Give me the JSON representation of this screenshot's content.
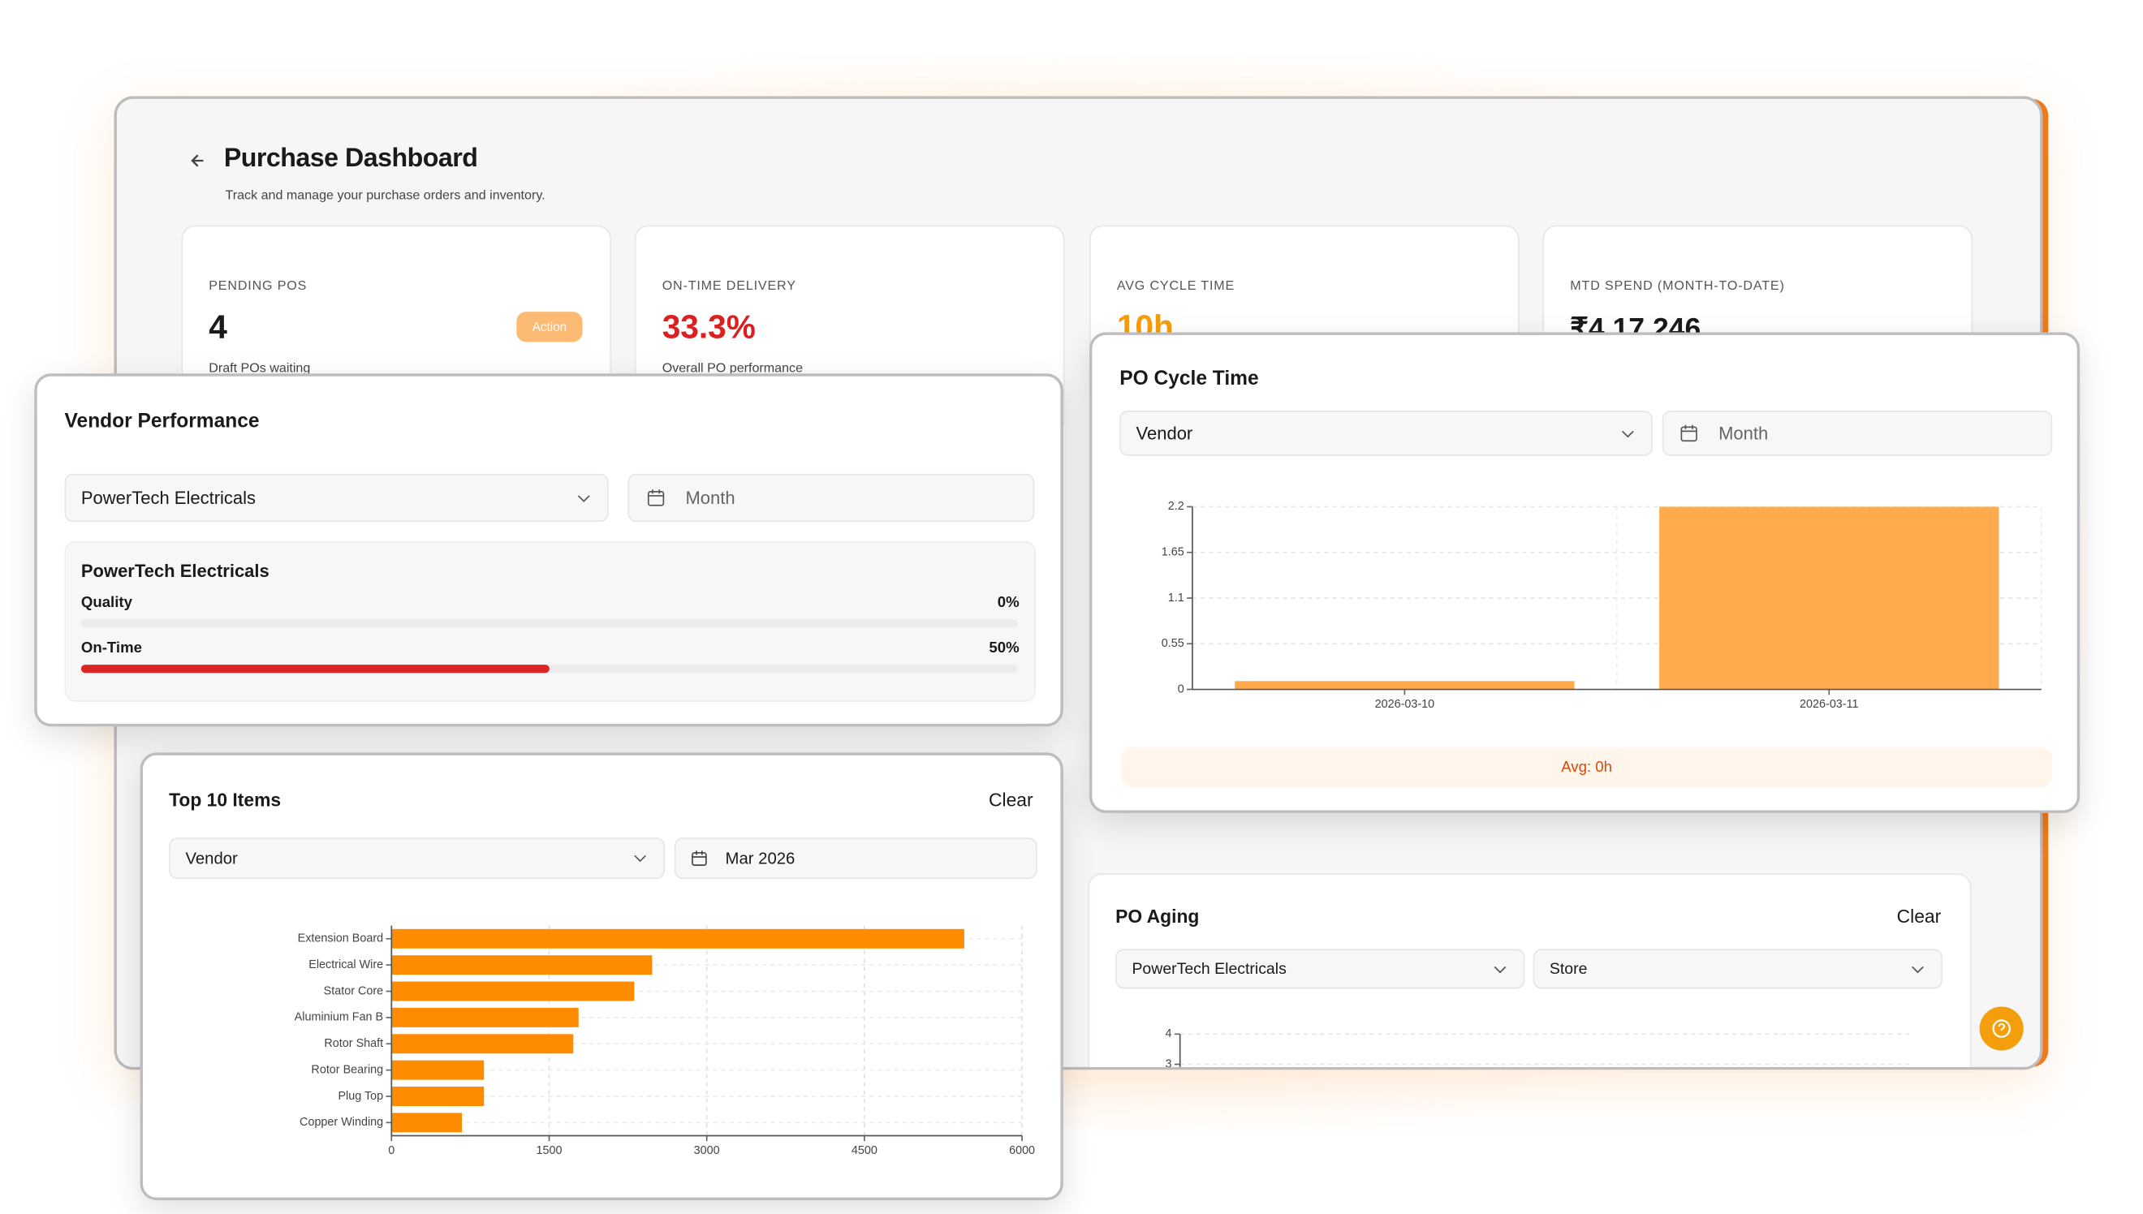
{
  "header": {
    "title": "Purchase Dashboard",
    "subtitle": "Track and manage your purchase orders and inventory."
  },
  "kpis": [
    {
      "label": "PENDING POS",
      "value": "4",
      "badge": "Action",
      "note": "Draft POs waiting"
    },
    {
      "label": "ON-TIME DELIVERY",
      "value": "33.3%",
      "note": "Overall PO performance"
    },
    {
      "label": "AVG CYCLE TIME",
      "value": "10h"
    },
    {
      "label": "MTD SPEND (MONTH-TO-DATE)",
      "value": "₹4,17,246"
    }
  ],
  "vendor_performance": {
    "title": "Vendor Performance",
    "vendor_filter": "PowerTech Electricals",
    "month_placeholder": "Month",
    "vendor": "PowerTech Electricals",
    "metrics": [
      {
        "label": "Quality",
        "value": 0,
        "value_label": "0%"
      },
      {
        "label": "On-Time",
        "value": 50,
        "value_label": "50%"
      }
    ]
  },
  "top_items": {
    "clear": "Clear",
    "vendor_filter": "Vendor",
    "month": "Mar 2026"
  },
  "po_cycle_time": {
    "vendor_filter": "Vendor",
    "month_placeholder": "Month",
    "avg": "Avg: 0h"
  },
  "po_aging": {
    "clear": "Clear",
    "vendor_filter": "PowerTech Electricals",
    "store_filter": "Store"
  },
  "chart_data": [
    {
      "type": "bar",
      "orientation": "horizontal",
      "title": "Top 10 Items",
      "categories": [
        "Extension Board",
        "Electrical Wire",
        "Stator Core",
        "Aluminium Fan B",
        "Rotor Shaft",
        "Rotor Bearing",
        "Plug Top",
        "Copper Winding"
      ],
      "values": [
        5450,
        2480,
        2310,
        1780,
        1730,
        880,
        880,
        670
      ],
      "color": "#ff8c00",
      "xlim": [
        0,
        6000
      ],
      "xticks": [
        0,
        1500,
        3000,
        4500,
        6000
      ],
      "grid": true
    },
    {
      "type": "bar",
      "orientation": "vertical",
      "title": "PO Cycle Time",
      "categories": [
        "2026-03-10",
        "2026-03-11"
      ],
      "values": [
        0.1,
        2.2
      ],
      "color": "#ffaa4c",
      "ylim": [
        0,
        2.2
      ],
      "yticks": [
        0,
        0.55,
        1.1,
        1.65,
        2.2
      ],
      "grid": true
    },
    {
      "type": "bar",
      "orientation": "vertical",
      "title": "PO Aging",
      "categories": [],
      "values": [],
      "color": "#ff8c00",
      "ylim": [
        0,
        4
      ],
      "yticks": [
        3,
        4
      ],
      "grid": true
    }
  ]
}
